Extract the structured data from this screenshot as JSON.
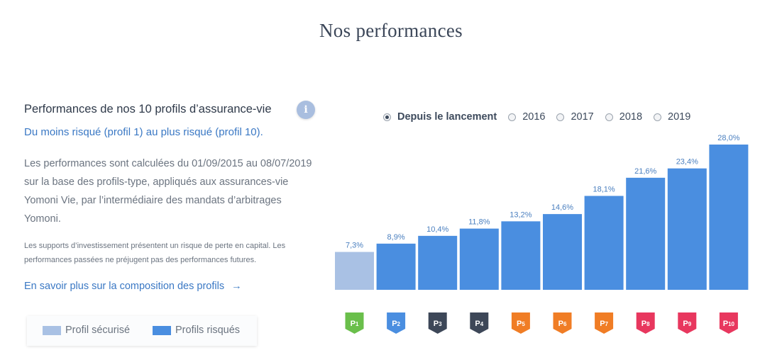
{
  "page": {
    "title": "Nos performances"
  },
  "left": {
    "section_title": "Performances de nos 10 profils d’assurance-vie",
    "info_icon": "i",
    "subtitle": "Du moins risqué (profil 1) au plus risqué (profil 10).",
    "description": "Les performances sont calculées du 01/09/2015 au 08/07/2019 sur la base des profils-type, appliqués aux assurances-vie Yomoni Vie, par l’intermédiaire des mandats d’arbitrages Yomoni.",
    "disclaimer": "Les supports d’investissement présentent un risque de perte en capital. Les performances passées ne préjugent pas des performances futures.",
    "more_link": "En savoir plus sur la composition des profils",
    "more_link_arrow": "→"
  },
  "legend": {
    "items": [
      {
        "label": "Profil sécurisé",
        "color": "#a9c1e4"
      },
      {
        "label": "Profils risqués",
        "color": "#4a8ee0"
      }
    ]
  },
  "period_filter": {
    "options": [
      {
        "label": "Depuis le lancement",
        "selected": true
      },
      {
        "label": "2016",
        "selected": false
      },
      {
        "label": "2017",
        "selected": false
      },
      {
        "label": "2018",
        "selected": false
      },
      {
        "label": "2019",
        "selected": false
      }
    ]
  },
  "chart_data": {
    "type": "bar",
    "title": "",
    "xlabel": "",
    "ylabel": "",
    "ylim": [
      0,
      28.0
    ],
    "categories": [
      "P1",
      "P2",
      "P3",
      "P4",
      "P5",
      "P6",
      "P7",
      "P8",
      "P9",
      "P10"
    ],
    "values": [
      7.3,
      8.9,
      10.4,
      11.8,
      13.2,
      14.6,
      18.1,
      21.6,
      23.4,
      28.0
    ],
    "value_labels": [
      "7,3%",
      "8,9%",
      "10,4%",
      "11,8%",
      "13,2%",
      "14,6%",
      "18,1%",
      "21,6%",
      "23,4%",
      "28,0%"
    ],
    "bar_colors": [
      "#a9c1e4",
      "#4a8ee0",
      "#4a8ee0",
      "#4a8ee0",
      "#4a8ee0",
      "#4a8ee0",
      "#4a8ee0",
      "#4a8ee0",
      "#4a8ee0",
      "#4a8ee0"
    ],
    "badges": [
      {
        "prefix": "P",
        "number": "1",
        "color": "#6abf4b"
      },
      {
        "prefix": "P",
        "number": "2",
        "color": "#4a8ee0"
      },
      {
        "prefix": "P",
        "number": "3",
        "color": "#3d4758"
      },
      {
        "prefix": "P",
        "number": "4",
        "color": "#3d4758"
      },
      {
        "prefix": "P",
        "number": "5",
        "color": "#f07d25"
      },
      {
        "prefix": "P",
        "number": "6",
        "color": "#f07d25"
      },
      {
        "prefix": "P",
        "number": "7",
        "color": "#f07d25"
      },
      {
        "prefix": "P",
        "number": "8",
        "color": "#e8375e"
      },
      {
        "prefix": "P",
        "number": "9",
        "color": "#e8375e"
      },
      {
        "prefix": "P",
        "number": "10",
        "color": "#e8375e"
      }
    ],
    "value_label_color": "#4a7fbf",
    "grid": false,
    "legend_position": "bottom-left"
  }
}
